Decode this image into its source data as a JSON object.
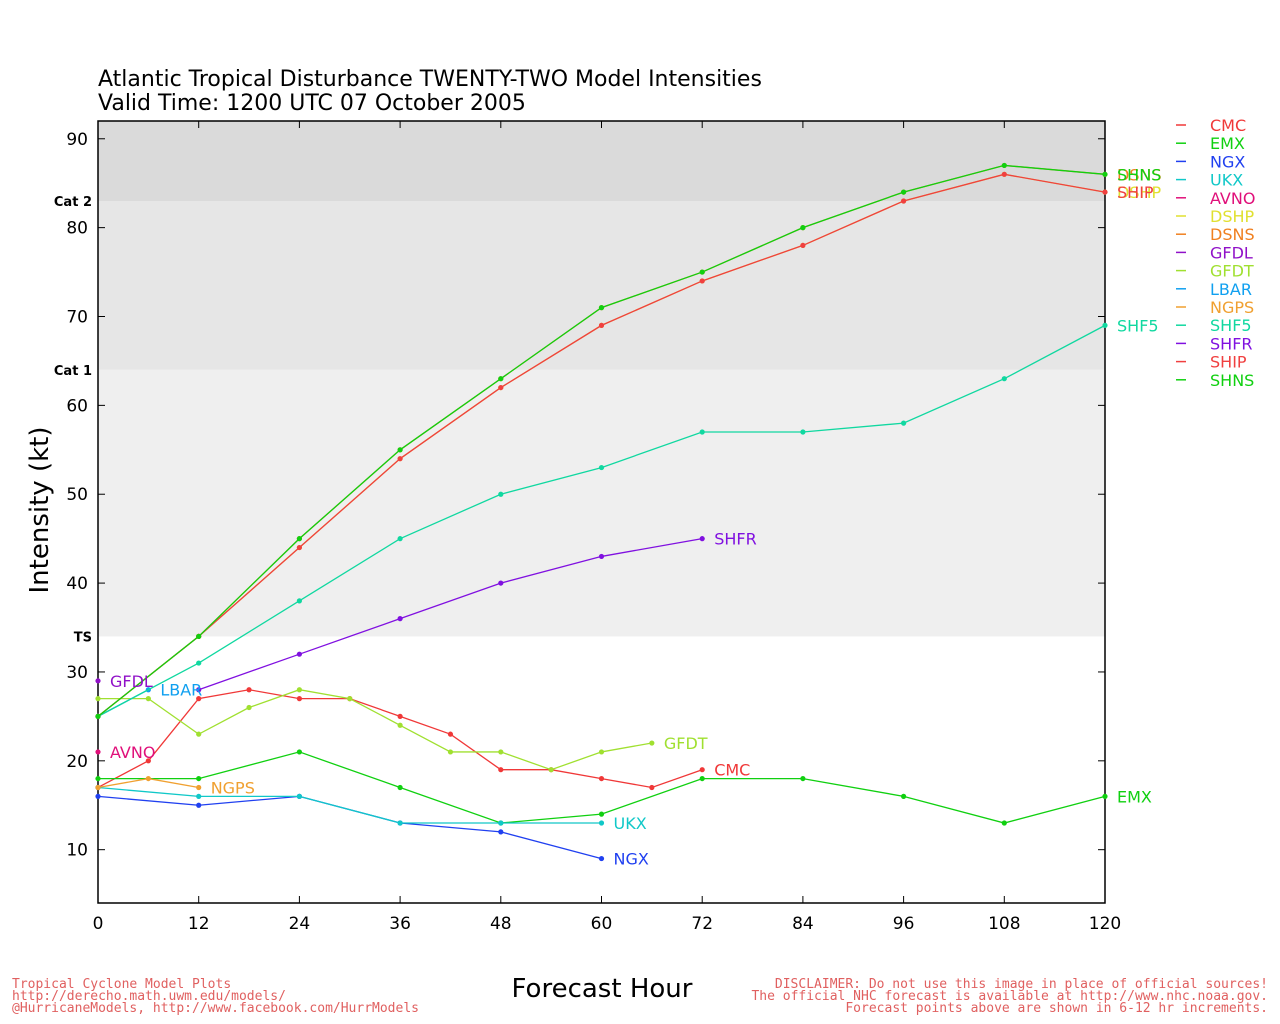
{
  "title_line1": "Atlantic Tropical Disturbance TWENTY-TWO Model Intensities",
  "title_line2": "Valid Time: 1200 UTC 07 October 2005",
  "footer": {
    "left": [
      "Tropical Cyclone Model Plots",
      "http://derecho.math.uwm.edu/models/",
      "@HurricaneModels, http://www.facebook.com/HurrModels"
    ],
    "right": [
      "DISCLAIMER: Do not use this image in place of official sources!",
      "The official NHC forecast is available at http://www.nhc.noaa.gov.",
      "Forecast points above are shown in 6-12 hr increments."
    ],
    "color": "#e06060"
  },
  "chart_data": {
    "type": "line",
    "title": "Atlantic Tropical Disturbance TWENTY-TWO Model Intensities",
    "subtitle": "Valid Time: 1200 UTC 07 October 2005",
    "xlabel": "Forecast Hour",
    "ylabel": "Intensity (kt)",
    "xlim": [
      0,
      120
    ],
    "ylim": [
      4,
      92
    ],
    "xticks": [
      0,
      12,
      24,
      36,
      48,
      60,
      72,
      84,
      96,
      108,
      120
    ],
    "yticks": [
      10,
      20,
      30,
      40,
      50,
      60,
      70,
      80,
      90
    ],
    "grid": false,
    "legend_position": "right",
    "bands": [
      {
        "label": "TS",
        "from": 34,
        "to": 64,
        "color": "#efefef"
      },
      {
        "label": "Cat 1",
        "from": 64,
        "to": 83,
        "color": "#e6e6e6"
      },
      {
        "label": "Cat 2",
        "from": 83,
        "to": 92,
        "color": "#dadada"
      }
    ],
    "series": [
      {
        "name": "CMC",
        "color": "#f03838",
        "end_label": true,
        "x": [
          0,
          6,
          12,
          18,
          24,
          30,
          36,
          42,
          48,
          54,
          60,
          66,
          72
        ],
        "y": [
          17,
          20,
          27,
          28,
          27,
          27,
          25,
          23,
          19,
          19,
          18,
          17,
          19
        ]
      },
      {
        "name": "EMX",
        "color": "#10d010",
        "end_label": true,
        "x": [
          0,
          12,
          24,
          36,
          48,
          60,
          72,
          84,
          96,
          108,
          120
        ],
        "y": [
          18,
          18,
          21,
          17,
          13,
          14,
          18,
          18,
          16,
          13,
          16
        ]
      },
      {
        "name": "NGX",
        "color": "#2040f0",
        "end_label": true,
        "x": [
          0,
          12,
          24,
          36,
          48,
          60
        ],
        "y": [
          16,
          15,
          16,
          13,
          12,
          9
        ]
      },
      {
        "name": "UKX",
        "color": "#10c8c8",
        "end_label": true,
        "x": [
          0,
          12,
          24,
          36,
          48,
          60
        ],
        "y": [
          17,
          16,
          16,
          13,
          13,
          13
        ]
      },
      {
        "name": "AVNO",
        "color": "#e0107a",
        "end_label": true,
        "x": [
          0
        ],
        "y": [
          21
        ]
      },
      {
        "name": "DSHP",
        "color": "#e0e030",
        "end_label": true,
        "x": [
          0,
          12,
          24,
          36,
          48,
          60,
          72,
          84,
          96,
          108,
          120
        ],
        "y": [
          25,
          34,
          44,
          54,
          62,
          69,
          74,
          78,
          83,
          86,
          84
        ]
      },
      {
        "name": "DSNS",
        "color": "#f08020",
        "end_label": true,
        "x": [
          0,
          12,
          24,
          36,
          48,
          60,
          72,
          84,
          96,
          108,
          120
        ],
        "y": [
          25,
          34,
          45,
          55,
          63,
          71,
          75,
          80,
          84,
          87,
          86
        ]
      },
      {
        "name": "GFDL",
        "color": "#9010c8",
        "end_label": true,
        "x": [
          0
        ],
        "y": [
          29
        ]
      },
      {
        "name": "GFDT",
        "color": "#a0e030",
        "end_label": true,
        "x": [
          0,
          6,
          12,
          18,
          24,
          30,
          36,
          42,
          48,
          54,
          60,
          66
        ],
        "y": [
          27,
          27,
          23,
          26,
          28,
          27,
          24,
          21,
          21,
          19,
          21,
          22
        ]
      },
      {
        "name": "LBAR",
        "color": "#10a0f0",
        "end_label": true,
        "x": [
          0,
          6
        ],
        "y": [
          25,
          28
        ]
      },
      {
        "name": "NGPS",
        "color": "#f0a030",
        "end_label": true,
        "x": [
          0,
          6,
          12
        ],
        "y": [
          17,
          18,
          17
        ]
      },
      {
        "name": "SHF5",
        "color": "#10d8a0",
        "end_label": true,
        "x": [
          0,
          12,
          24,
          36,
          48,
          60,
          72,
          84,
          96,
          108,
          120
        ],
        "y": [
          25,
          31,
          38,
          45,
          50,
          53,
          57,
          57,
          58,
          63,
          69
        ]
      },
      {
        "name": "SHFR",
        "color": "#8010e0",
        "end_label": true,
        "x": [
          12,
          24,
          36,
          48,
          60,
          72
        ],
        "y": [
          28,
          32,
          36,
          40,
          43,
          45
        ]
      },
      {
        "name": "SHIP",
        "color": "#f04040",
        "end_label": true,
        "x": [
          0,
          12,
          24,
          36,
          48,
          60,
          72,
          84,
          96,
          108,
          120
        ],
        "y": [
          25,
          34,
          44,
          54,
          62,
          69,
          74,
          78,
          83,
          86,
          84
        ]
      },
      {
        "name": "SHNS",
        "color": "#10d010",
        "end_label": true,
        "x": [
          0,
          12,
          24,
          36,
          48,
          60,
          72,
          84,
          96,
          108,
          120
        ],
        "y": [
          25,
          34,
          45,
          55,
          63,
          71,
          75,
          80,
          84,
          87,
          86
        ]
      }
    ]
  }
}
